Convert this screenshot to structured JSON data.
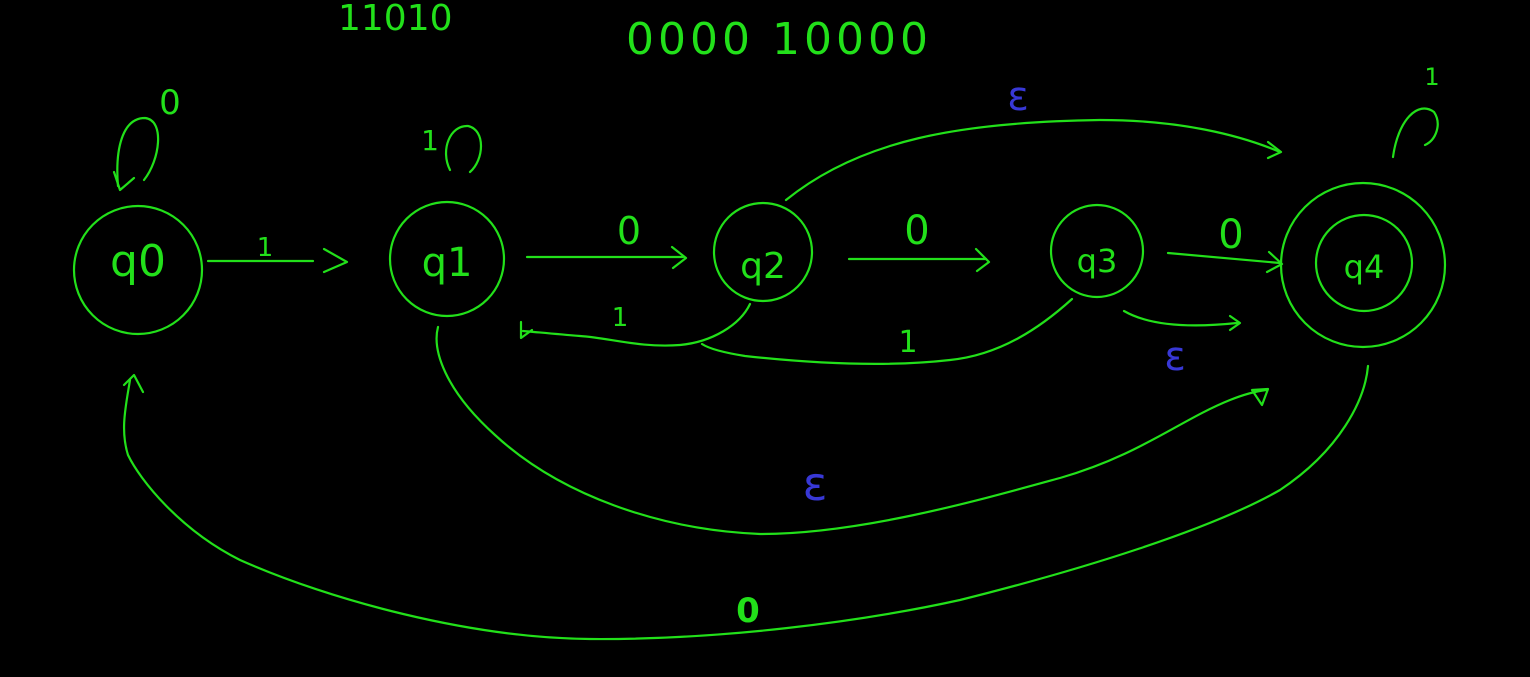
{
  "colors": {
    "background": "#000000",
    "ink": "#22e01a",
    "epsilon": "#3838d6"
  },
  "header": {
    "example_a": "11010",
    "example_b": "0000 10000"
  },
  "states": {
    "q0": "q0",
    "q1": "q1",
    "q2": "q2",
    "q3": "q3",
    "q4": "q4"
  },
  "labels": {
    "q0_self_loop": "0",
    "q1_self_loop": "1",
    "q4_self_loop": "1",
    "q0_to_q1": "1",
    "q1_to_q2": "0",
    "q2_to_q3": "0",
    "q3_to_q4": "0",
    "q2_to_q1": "1",
    "q3_to_q1": "1",
    "q2_to_q4_eps": "ε",
    "q3_to_q4_eps": "ε",
    "q1_to_q4_eps": "ε",
    "q4_to_q0": "0"
  }
}
